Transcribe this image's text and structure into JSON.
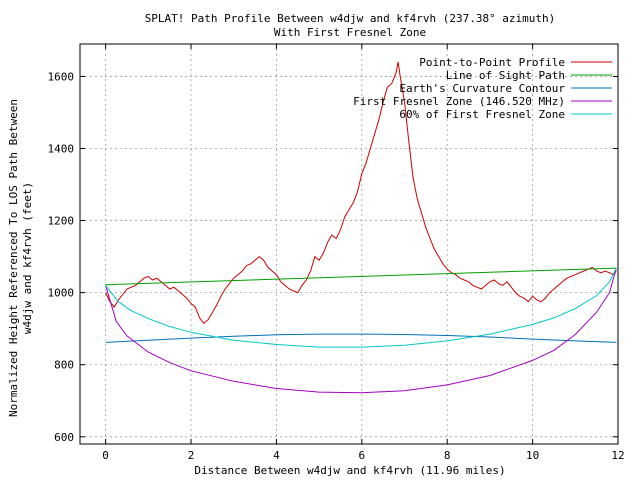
{
  "chart_data": {
    "type": "line",
    "title": "SPLAT! Path Profile Between w4djw and kf4rvh (237.38° azimuth)",
    "subtitle": "With First Fresnel Zone",
    "xlabel": "Distance Between w4djw and kf4rvh (11.96 miles)",
    "ylabel_line1": "Normalized Height Referenced To LOS Path Between",
    "ylabel_line2": "w4djw and kf4rvh (feet)",
    "xlim": [
      -0.6,
      12
    ],
    "ylim": [
      580,
      1690
    ],
    "x_ticks": [
      0,
      2,
      4,
      6,
      8,
      10,
      12
    ],
    "y_ticks": [
      600,
      800,
      1000,
      1200,
      1400,
      1600
    ],
    "grid": true,
    "legend_position": "top-right",
    "series": [
      {
        "name": "Point-to-Point Profile",
        "color": "#cc0000",
        "points": [
          [
            0,
            1000
          ],
          [
            0.1,
            975
          ],
          [
            0.2,
            960
          ],
          [
            0.3,
            980
          ],
          [
            0.4,
            995
          ],
          [
            0.5,
            1010
          ],
          [
            0.6,
            1015
          ],
          [
            0.7,
            1020
          ],
          [
            0.8,
            1030
          ],
          [
            0.9,
            1040
          ],
          [
            1.0,
            1045
          ],
          [
            1.1,
            1035
          ],
          [
            1.2,
            1040
          ],
          [
            1.3,
            1030
          ],
          [
            1.4,
            1020
          ],
          [
            1.5,
            1010
          ],
          [
            1.6,
            1015
          ],
          [
            1.7,
            1005
          ],
          [
            1.8,
            995
          ],
          [
            1.9,
            985
          ],
          [
            2.0,
            970
          ],
          [
            2.1,
            960
          ],
          [
            2.2,
            930
          ],
          [
            2.3,
            915
          ],
          [
            2.4,
            925
          ],
          [
            2.5,
            945
          ],
          [
            2.6,
            965
          ],
          [
            2.7,
            990
          ],
          [
            2.8,
            1010
          ],
          [
            2.9,
            1025
          ],
          [
            3.0,
            1040
          ],
          [
            3.1,
            1050
          ],
          [
            3.2,
            1060
          ],
          [
            3.3,
            1075
          ],
          [
            3.4,
            1080
          ],
          [
            3.5,
            1090
          ],
          [
            3.6,
            1100
          ],
          [
            3.7,
            1090
          ],
          [
            3.8,
            1070
          ],
          [
            3.9,
            1060
          ],
          [
            4.0,
            1050
          ],
          [
            4.1,
            1030
          ],
          [
            4.2,
            1020
          ],
          [
            4.3,
            1010
          ],
          [
            4.4,
            1005
          ],
          [
            4.5,
            1000
          ],
          [
            4.6,
            1020
          ],
          [
            4.7,
            1035
          ],
          [
            4.8,
            1060
          ],
          [
            4.9,
            1100
          ],
          [
            5.0,
            1090
          ],
          [
            5.1,
            1110
          ],
          [
            5.2,
            1140
          ],
          [
            5.3,
            1160
          ],
          [
            5.4,
            1150
          ],
          [
            5.5,
            1175
          ],
          [
            5.6,
            1210
          ],
          [
            5.7,
            1230
          ],
          [
            5.8,
            1250
          ],
          [
            5.9,
            1280
          ],
          [
            6.0,
            1330
          ],
          [
            6.1,
            1360
          ],
          [
            6.2,
            1400
          ],
          [
            6.3,
            1440
          ],
          [
            6.4,
            1480
          ],
          [
            6.5,
            1530
          ],
          [
            6.6,
            1570
          ],
          [
            6.7,
            1580
          ],
          [
            6.8,
            1610
          ],
          [
            6.85,
            1640
          ],
          [
            6.9,
            1600
          ],
          [
            7.0,
            1530
          ],
          [
            7.1,
            1420
          ],
          [
            7.2,
            1320
          ],
          [
            7.3,
            1260
          ],
          [
            7.4,
            1220
          ],
          [
            7.5,
            1180
          ],
          [
            7.6,
            1150
          ],
          [
            7.7,
            1120
          ],
          [
            7.8,
            1100
          ],
          [
            7.9,
            1080
          ],
          [
            8.0,
            1065
          ],
          [
            8.1,
            1055
          ],
          [
            8.2,
            1050
          ],
          [
            8.3,
            1040
          ],
          [
            8.4,
            1035
          ],
          [
            8.5,
            1030
          ],
          [
            8.6,
            1020
          ],
          [
            8.7,
            1015
          ],
          [
            8.8,
            1010
          ],
          [
            8.9,
            1020
          ],
          [
            9.0,
            1030
          ],
          [
            9.1,
            1035
          ],
          [
            9.2,
            1025
          ],
          [
            9.3,
            1020
          ],
          [
            9.4,
            1030
          ],
          [
            9.5,
            1015
          ],
          [
            9.6,
            1000
          ],
          [
            9.7,
            990
          ],
          [
            9.8,
            985
          ],
          [
            9.9,
            975
          ],
          [
            10.0,
            990
          ],
          [
            10.1,
            980
          ],
          [
            10.2,
            975
          ],
          [
            10.3,
            985
          ],
          [
            10.4,
            1000
          ],
          [
            10.5,
            1010
          ],
          [
            10.6,
            1020
          ],
          [
            10.7,
            1030
          ],
          [
            10.8,
            1040
          ],
          [
            10.9,
            1045
          ],
          [
            11.0,
            1050
          ],
          [
            11.1,
            1055
          ],
          [
            11.2,
            1060
          ],
          [
            11.3,
            1065
          ],
          [
            11.4,
            1070
          ],
          [
            11.5,
            1060
          ],
          [
            11.6,
            1055
          ],
          [
            11.7,
            1060
          ],
          [
            11.8,
            1055
          ],
          [
            11.9,
            1050
          ],
          [
            11.96,
            1060
          ]
        ]
      },
      {
        "name": "Line of Sight Path",
        "color": "#00a000",
        "points": [
          [
            0,
            1022
          ],
          [
            11.96,
            1068
          ]
        ]
      },
      {
        "name": "Earth's Curvature Contour",
        "color": "#0070b8",
        "points": [
          [
            0,
            862
          ],
          [
            1,
            868
          ],
          [
            2,
            874
          ],
          [
            3,
            879
          ],
          [
            4,
            883
          ],
          [
            5,
            885
          ],
          [
            6,
            885
          ],
          [
            7,
            884
          ],
          [
            8,
            881
          ],
          [
            9,
            877
          ],
          [
            10,
            871
          ],
          [
            11,
            866
          ],
          [
            11.96,
            862
          ]
        ]
      },
      {
        "name": "First Fresnel Zone (146.520 MHz)",
        "color": "#a000c0",
        "points": [
          [
            0,
            1020
          ],
          [
            0.25,
            920
          ],
          [
            0.5,
            880
          ],
          [
            1,
            835
          ],
          [
            1.5,
            806
          ],
          [
            2,
            783
          ],
          [
            3,
            754
          ],
          [
            4,
            734
          ],
          [
            5,
            724
          ],
          [
            6,
            722
          ],
          [
            7,
            728
          ],
          [
            8,
            744
          ],
          [
            9,
            770
          ],
          [
            10,
            812
          ],
          [
            10.5,
            840
          ],
          [
            11,
            884
          ],
          [
            11.5,
            946
          ],
          [
            11.8,
            1000
          ],
          [
            11.96,
            1068
          ]
        ]
      },
      {
        "name": "60% of First Fresnel Zone",
        "color": "#00c8c8",
        "points": [
          [
            0,
            1020
          ],
          [
            0.3,
            975
          ],
          [
            0.6,
            950
          ],
          [
            1,
            928
          ],
          [
            1.5,
            906
          ],
          [
            2,
            890
          ],
          [
            3,
            868
          ],
          [
            4,
            856
          ],
          [
            5,
            849
          ],
          [
            6,
            849
          ],
          [
            7,
            854
          ],
          [
            8,
            866
          ],
          [
            9,
            885
          ],
          [
            10,
            912
          ],
          [
            10.5,
            930
          ],
          [
            11,
            956
          ],
          [
            11.5,
            992
          ],
          [
            11.8,
            1030
          ],
          [
            11.96,
            1068
          ]
        ]
      }
    ]
  }
}
